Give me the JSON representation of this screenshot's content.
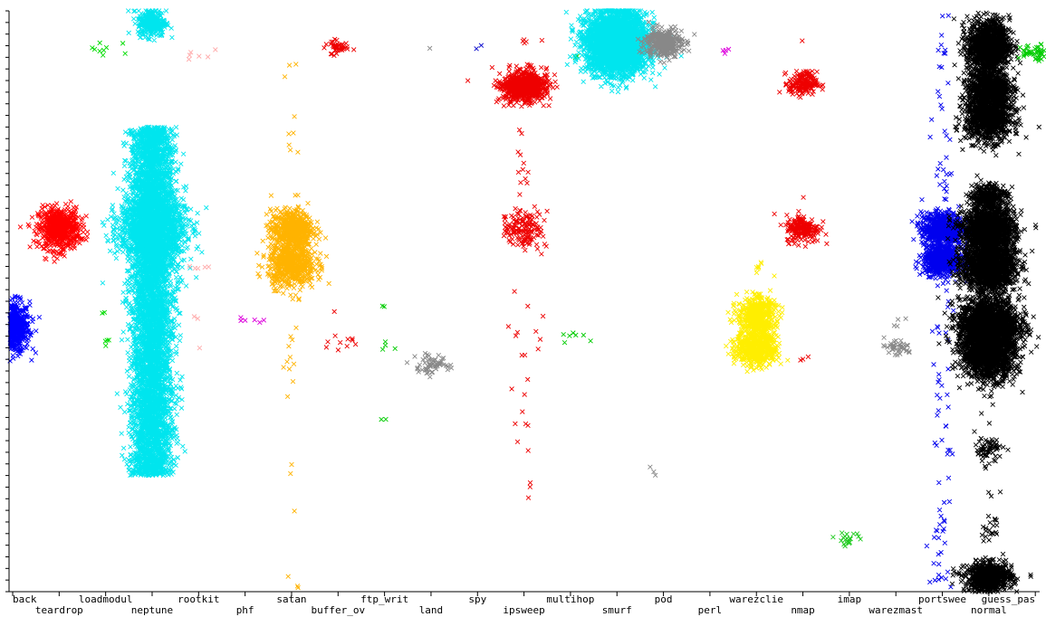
{
  "chart_data": {
    "type": "scatter",
    "title": "",
    "xlabel": "",
    "ylabel": "",
    "y_tick_count": 50,
    "grid": false,
    "categories": [
      "back",
      "teardrop",
      "loadmodul",
      "neptune",
      "rootkit",
      "phf",
      "satan",
      "buffer_ov",
      "ftp_writ",
      "land",
      "spy",
      "ipsweep",
      "multihop",
      "smurf",
      "pod",
      "perl",
      "warezclie",
      "nmap",
      "imap",
      "warezmast",
      "portswee",
      "normal",
      "guess_pas"
    ],
    "colors": {
      "back": "#0000ff",
      "teardrop": "#ff0000",
      "loadmodul": "#00dd00",
      "neptune": "#00e5ee",
      "rootkit": "#ffaaaa",
      "phf": "#dd00dd",
      "satan": "#ffb300",
      "buffer_ov": "#ee0000",
      "ftp_writ": "#00cc00",
      "land": "#888888",
      "spy": "#0000cc",
      "ipsweep": "#ee0000",
      "multihop": "#00cc00",
      "smurf": "#00e5ee",
      "pod": "#888888",
      "perl": "#dd00dd",
      "warezclie": "#ffee00",
      "nmap": "#ee0000",
      "imap": "#22cc22",
      "warezmast": "#888888",
      "portswee": "#0000ee",
      "normal": "#000000",
      "guess_pas": "#00cc00"
    },
    "clusters": [
      {
        "cat": "back",
        "y": 0.455,
        "sx": 0.18,
        "sy": 0.022,
        "n": 650
      },
      {
        "cat": "teardrop",
        "y": 0.625,
        "sx": 0.22,
        "sy": 0.018,
        "n": 600
      },
      {
        "cat": "loadmodul",
        "y": 0.935,
        "sx": 0.25,
        "sy": 0.008,
        "n": 9
      },
      {
        "cat": "loadmodul",
        "y": 0.47,
        "sx": 0.06,
        "sy": 0.004,
        "n": 2
      },
      {
        "cat": "loadmodul",
        "y": 0.425,
        "sx": 0.06,
        "sy": 0.005,
        "n": 4
      },
      {
        "cat": "neptune",
        "y": 0.5,
        "sx": 0.22,
        "sy": 0.3,
        "n": 5500,
        "spread": "uniform"
      },
      {
        "cat": "neptune",
        "y": 0.625,
        "sx": 0.35,
        "sy": 0.03,
        "n": 1400
      },
      {
        "cat": "neptune",
        "y": 0.98,
        "sx": 0.15,
        "sy": 0.012,
        "n": 300
      },
      {
        "cat": "rootkit",
        "y": 0.925,
        "sx": 0.15,
        "sy": 0.008,
        "n": 6
      },
      {
        "cat": "rootkit",
        "y": 0.56,
        "sx": 0.15,
        "sy": 0.005,
        "n": 5
      },
      {
        "cat": "rootkit",
        "y": 0.47,
        "sx": 0.1,
        "sy": 0.003,
        "n": 2
      },
      {
        "cat": "rootkit",
        "y": 0.42,
        "sx": 0.05,
        "sy": 0.003,
        "n": 1
      },
      {
        "cat": "phf",
        "y": 0.467,
        "sx": 0.18,
        "sy": 0.002,
        "n": 6
      },
      {
        "cat": "satan",
        "y": 0.625,
        "sx": 0.22,
        "sy": 0.016,
        "n": 550
      },
      {
        "cat": "satan",
        "y": 0.565,
        "sx": 0.25,
        "sy": 0.02,
        "n": 650
      },
      {
        "cat": "satan",
        "y": 0.75,
        "sx": 0.08,
        "sy": 0.16,
        "n": 14,
        "spread": "uniform"
      },
      {
        "cat": "satan",
        "y": 0.42,
        "sx": 0.1,
        "sy": 0.04,
        "n": 12
      },
      {
        "cat": "satan",
        "y": 0.16,
        "sx": 0.05,
        "sy": 0.06,
        "n": 3,
        "spread": "uniform"
      },
      {
        "cat": "satan",
        "y": 0.015,
        "sx": 0.1,
        "sy": 0.005,
        "n": 3
      },
      {
        "cat": "buffer_ov",
        "y": 0.937,
        "sx": 0.15,
        "sy": 0.006,
        "n": 45
      },
      {
        "cat": "buffer_ov",
        "y": 0.425,
        "sx": 0.2,
        "sy": 0.006,
        "n": 10
      },
      {
        "cat": "buffer_ov",
        "y": 0.48,
        "sx": 0.05,
        "sy": 0.002,
        "n": 1
      },
      {
        "cat": "ftp_writ",
        "y": 0.42,
        "sx": 0.08,
        "sy": 0.004,
        "n": 4
      },
      {
        "cat": "ftp_writ",
        "y": 0.49,
        "sx": 0.05,
        "sy": 0.002,
        "n": 2
      },
      {
        "cat": "ftp_writ",
        "y": 0.297,
        "sx": 0.06,
        "sy": 0.002,
        "n": 2
      },
      {
        "cat": "land",
        "y": 0.393,
        "sx": 0.18,
        "sy": 0.008,
        "n": 60
      },
      {
        "cat": "land",
        "y": 0.938,
        "sx": 0.03,
        "sy": 0.002,
        "n": 1
      },
      {
        "cat": "spy",
        "y": 0.94,
        "sx": 0.15,
        "sy": 0.006,
        "n": 2
      },
      {
        "cat": "ipsweep",
        "y": 0.87,
        "sx": 0.25,
        "sy": 0.013,
        "n": 700
      },
      {
        "cat": "ipsweep",
        "y": 0.625,
        "sx": 0.2,
        "sy": 0.015,
        "n": 150
      },
      {
        "cat": "ipsweep",
        "y": 0.73,
        "sx": 0.1,
        "sy": 0.05,
        "n": 12
      },
      {
        "cat": "ipsweep",
        "y": 0.42,
        "sx": 0.25,
        "sy": 0.04,
        "n": 14
      },
      {
        "cat": "ipsweep",
        "y": 0.945,
        "sx": 0.2,
        "sy": 0.003,
        "n": 5
      },
      {
        "cat": "ipsweep",
        "y": 0.22,
        "sx": 0.08,
        "sy": 0.1,
        "n": 9,
        "spread": "uniform"
      },
      {
        "cat": "multihop",
        "y": 0.44,
        "sx": 0.15,
        "sy": 0.03,
        "n": 8
      },
      {
        "cat": "multihop",
        "y": 0.93,
        "sx": 0.2,
        "sy": 0.01,
        "n": 2
      },
      {
        "cat": "smurf",
        "y": 0.945,
        "sx": 0.32,
        "sy": 0.025,
        "n": 3800
      },
      {
        "cat": "pod",
        "y": 0.945,
        "sx": 0.2,
        "sy": 0.012,
        "n": 350
      },
      {
        "cat": "pod",
        "y": 0.205,
        "sx": 0.12,
        "sy": 0.003,
        "n": 3
      },
      {
        "cat": "perl",
        "y": 0.93,
        "sx": 0.2,
        "sy": 0.003,
        "n": 4
      },
      {
        "cat": "warezclie",
        "y": 0.475,
        "sx": 0.2,
        "sy": 0.016,
        "n": 500
      },
      {
        "cat": "warezclie",
        "y": 0.42,
        "sx": 0.22,
        "sy": 0.016,
        "n": 550
      },
      {
        "cat": "warezclie",
        "y": 0.55,
        "sx": 0.05,
        "sy": 0.014,
        "n": 7
      },
      {
        "cat": "nmap",
        "y": 0.875,
        "sx": 0.15,
        "sy": 0.01,
        "n": 180
      },
      {
        "cat": "nmap",
        "y": 0.625,
        "sx": 0.18,
        "sy": 0.012,
        "n": 200
      },
      {
        "cat": "nmap",
        "y": 0.4,
        "sx": 0.1,
        "sy": 0.01,
        "n": 3
      },
      {
        "cat": "nmap",
        "y": 0.95,
        "sx": 0.05,
        "sy": 0.005,
        "n": 1
      },
      {
        "cat": "nmap",
        "y": 0.68,
        "sx": 0.05,
        "sy": 0.003,
        "n": 1
      },
      {
        "cat": "imap",
        "y": 0.092,
        "sx": 0.15,
        "sy": 0.005,
        "n": 20
      },
      {
        "cat": "warezmast",
        "y": 0.42,
        "sx": 0.18,
        "sy": 0.008,
        "n": 40
      },
      {
        "cat": "warezmast",
        "y": 0.47,
        "sx": 0.1,
        "sy": 0.008,
        "n": 4
      },
      {
        "cat": "portswee",
        "y": 0.625,
        "sx": 0.22,
        "sy": 0.014,
        "n": 700
      },
      {
        "cat": "portswee",
        "y": 0.57,
        "sx": 0.2,
        "sy": 0.012,
        "n": 650
      },
      {
        "cat": "portswee",
        "y": 0.5,
        "sx": 0.12,
        "sy": 0.5,
        "n": 110,
        "spread": "uniform"
      },
      {
        "cat": "normal",
        "y": 0.94,
        "sx": 0.22,
        "sy": 0.022,
        "n": 1200
      },
      {
        "cat": "normal",
        "y": 0.87,
        "sx": 0.22,
        "sy": 0.015,
        "n": 700
      },
      {
        "cat": "normal",
        "y": 0.82,
        "sx": 0.25,
        "sy": 0.022,
        "n": 1100
      },
      {
        "cat": "normal",
        "y": 0.68,
        "sx": 0.2,
        "sy": 0.012,
        "n": 300
      },
      {
        "cat": "normal",
        "y": 0.625,
        "sx": 0.28,
        "sy": 0.018,
        "n": 1300
      },
      {
        "cat": "normal",
        "y": 0.56,
        "sx": 0.28,
        "sy": 0.022,
        "n": 1400
      },
      {
        "cat": "normal",
        "y": 0.46,
        "sx": 0.32,
        "sy": 0.022,
        "n": 1700
      },
      {
        "cat": "normal",
        "y": 0.41,
        "sx": 0.28,
        "sy": 0.022,
        "n": 1400
      },
      {
        "cat": "normal",
        "y": 0.245,
        "sx": 0.15,
        "sy": 0.01,
        "n": 60
      },
      {
        "cat": "normal",
        "y": 0.105,
        "sx": 0.1,
        "sy": 0.01,
        "n": 20
      },
      {
        "cat": "normal",
        "y": 0.025,
        "sx": 0.25,
        "sy": 0.012,
        "n": 700
      },
      {
        "cat": "normal",
        "y": 0.3,
        "sx": 0.12,
        "sy": 0.15,
        "n": 20,
        "spread": "uniform"
      },
      {
        "cat": "guess_pas",
        "y": 0.93,
        "sx": 0.2,
        "sy": 0.008,
        "n": 60
      }
    ]
  }
}
